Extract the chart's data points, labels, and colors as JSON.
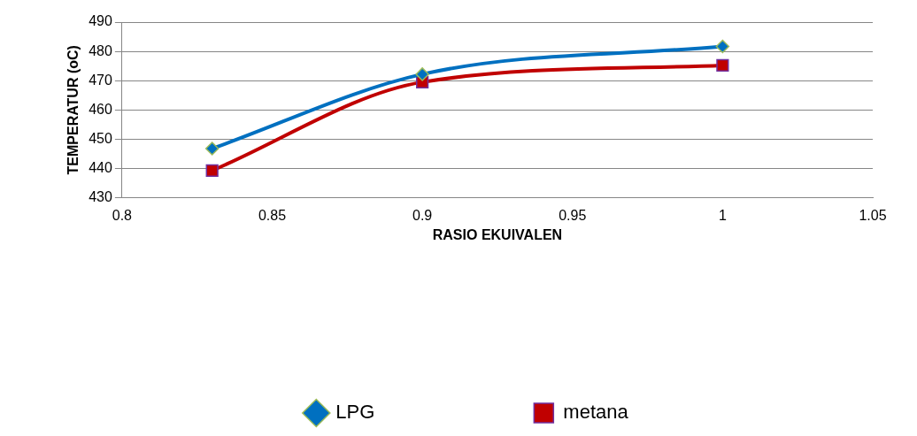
{
  "chart_data": {
    "type": "line",
    "xlabel": "RASIO EKUIVALEN",
    "ylabel": "TEMPERATUR (oC)",
    "xlim": [
      0.8,
      1.05
    ],
    "xticks": [
      0.8,
      0.85,
      0.9,
      0.95,
      1,
      1.05
    ],
    "ylim": [
      430,
      490
    ],
    "yticks": [
      430,
      440,
      450,
      460,
      470,
      480,
      490
    ],
    "grid": "y",
    "legend": "bottom",
    "series": [
      {
        "name": "LPG",
        "color": "#0070c0",
        "marker": "diamond",
        "x": [
          0.83,
          0.9,
          1
        ],
        "values": [
          446.8,
          472.2,
          481.7
        ]
      },
      {
        "name": "metana",
        "color": "#c00000",
        "marker": "square",
        "x": [
          0.83,
          0.9,
          1
        ],
        "values": [
          439.3,
          469.5,
          475.2
        ]
      }
    ]
  }
}
